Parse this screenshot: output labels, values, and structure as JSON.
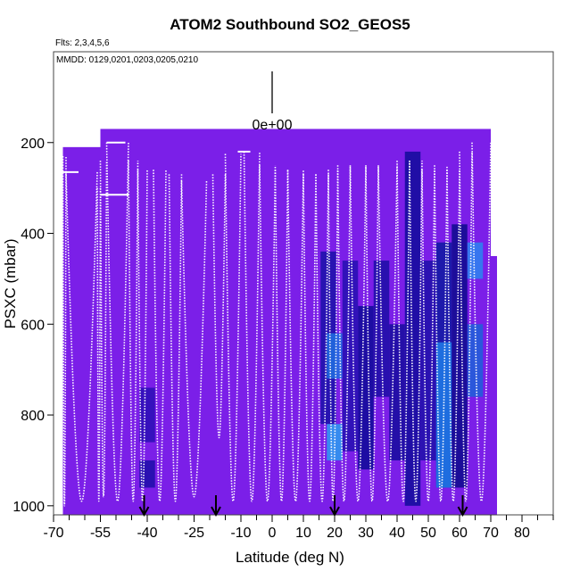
{
  "chart_data": {
    "type": "heatmap",
    "title": "ATOM2 Southbound SO2_GEOS5",
    "flights_note": "Flts: 2,3,4,5,6",
    "dates_note": "MMDD: 0129,0201,0203,0205,0210",
    "xlabel": "Latitude (deg N)",
    "ylabel": "PSXC (mbar)",
    "xlim": [
      -70,
      90
    ],
    "ylim": [
      1020,
      0
    ],
    "x_ticks": [
      -70,
      -55,
      -40,
      -25,
      -10,
      0,
      10,
      20,
      30,
      40,
      50,
      60,
      70,
      80
    ],
    "x_tick_labels": [
      "-70",
      "-55",
      "-40",
      "-25",
      "-10",
      "0",
      "10",
      "20",
      "30",
      "40",
      "50",
      "60",
      "70",
      "80"
    ],
    "y_ticks": [
      200,
      400,
      600,
      800,
      1000
    ],
    "y_tick_labels": [
      "200",
      "400",
      "600",
      "800",
      "1000"
    ],
    "colorbar_value_label": "0e+00",
    "base_color": "#7b1fe8",
    "curtain_extents": [
      {
        "x0": -67,
        "x1": -55,
        "p_top": 210,
        "p_bot": 1020
      },
      {
        "x0": -55,
        "x1": 70,
        "p_top": 170,
        "p_bot": 1020
      },
      {
        "x0": 70,
        "x1": 72,
        "p_top": 450,
        "p_bot": 1020
      }
    ],
    "anomaly_cells": [
      {
        "x": -40,
        "p0": 740,
        "p1": 860,
        "color": "#2a0fb5"
      },
      {
        "x": -40,
        "p0": 900,
        "p1": 960,
        "color": "#1c0ea8"
      },
      {
        "x": 18,
        "p0": 440,
        "p1": 820,
        "color": "#1a12a8"
      },
      {
        "x": 20,
        "p0": 620,
        "p1": 720,
        "color": "#1e6fe0"
      },
      {
        "x": 20,
        "p0": 820,
        "p1": 900,
        "color": "#2a9ff0"
      },
      {
        "x": 25,
        "p0": 460,
        "p1": 880,
        "color": "#2410b0"
      },
      {
        "x": 30,
        "p0": 560,
        "p1": 920,
        "color": "#0d0b96"
      },
      {
        "x": 35,
        "p0": 460,
        "p1": 760,
        "color": "#1b0ea5"
      },
      {
        "x": 40,
        "p0": 600,
        "p1": 900,
        "color": "#150d9c"
      },
      {
        "x": 45,
        "p0": 220,
        "p1": 1000,
        "color": "#110c9a"
      },
      {
        "x": 50,
        "p0": 460,
        "p1": 900,
        "color": "#1d11a8"
      },
      {
        "x": 55,
        "p0": 420,
        "p1": 960,
        "color": "#0d1aa0"
      },
      {
        "x": 55,
        "p0": 640,
        "p1": 960,
        "color": "#1e7ce8"
      },
      {
        "x": 60,
        "p0": 380,
        "p1": 960,
        "color": "#0c0b8c"
      },
      {
        "x": 65,
        "p0": 420,
        "p1": 500,
        "color": "#2b86f0"
      },
      {
        "x": 65,
        "p0": 600,
        "p1": 760,
        "color": "#1d62d8"
      }
    ],
    "profiles": [
      {
        "x0": -67,
        "x1": -66,
        "p_top": 230,
        "p_bot": 1000
      },
      {
        "x0": -66,
        "x1": -56,
        "p_top": 265,
        "p_bot": 990
      },
      {
        "x0": -56,
        "x1": -55,
        "p_top": 300,
        "p_bot": 990
      },
      {
        "x0": -55,
        "x1": -53,
        "p_top": 240,
        "p_bot": 980
      },
      {
        "x0": -53,
        "x1": -46,
        "p_top": 200,
        "p_bot": 990
      },
      {
        "x0": -46,
        "x1": -43,
        "p_top": 240,
        "p_bot": 990
      },
      {
        "x0": -43,
        "x1": -40,
        "p_top": 260,
        "p_bot": 990
      },
      {
        "x0": -38,
        "x1": -34,
        "p_top": 260,
        "p_bot": 990
      },
      {
        "x0": -33,
        "x1": -29,
        "p_top": 270,
        "p_bot": 990
      },
      {
        "x0": -29,
        "x1": -21,
        "p_top": 285,
        "p_bot": 980
      },
      {
        "x0": -19,
        "x1": -15,
        "p_top": 270,
        "p_bot": 850
      },
      {
        "x0": -15,
        "x1": -10,
        "p_top": 225,
        "p_bot": 990
      },
      {
        "x0": -9,
        "x1": -4,
        "p_top": 220,
        "p_bot": 990
      },
      {
        "x0": -4,
        "x1": 1,
        "p_top": 250,
        "p_bot": 990
      },
      {
        "x0": 1,
        "x1": 5,
        "p_top": 260,
        "p_bot": 990
      },
      {
        "x0": 5,
        "x1": 10,
        "p_top": 260,
        "p_bot": 990
      },
      {
        "x0": 10,
        "x1": 14,
        "p_top": 270,
        "p_bot": 990
      },
      {
        "x0": 14,
        "x1": 18,
        "p_top": 270,
        "p_bot": 990
      },
      {
        "x0": 18,
        "x1": 21,
        "p_top": 260,
        "p_bot": 990
      },
      {
        "x0": 21,
        "x1": 25,
        "p_top": 250,
        "p_bot": 990
      },
      {
        "x0": 25,
        "x1": 30,
        "p_top": 250,
        "p_bot": 990
      },
      {
        "x0": 30,
        "x1": 34,
        "p_top": 250,
        "p_bot": 990
      },
      {
        "x0": 34,
        "x1": 40,
        "p_top": 250,
        "p_bot": 990
      },
      {
        "x0": 40,
        "x1": 44,
        "p_top": 240,
        "p_bot": 990
      },
      {
        "x0": 44,
        "x1": 48,
        "p_top": 240,
        "p_bot": 990
      },
      {
        "x0": 48,
        "x1": 52,
        "p_top": 260,
        "p_bot": 990
      },
      {
        "x0": 52,
        "x1": 56,
        "p_top": 250,
        "p_bot": 990
      },
      {
        "x0": 56,
        "x1": 60,
        "p_top": 260,
        "p_bot": 990
      },
      {
        "x0": 60,
        "x1": 64,
        "p_top": 220,
        "p_bot": 990
      },
      {
        "x0": 64,
        "x1": 70,
        "p_top": 200,
        "p_bot": 990
      }
    ],
    "flat_segments": [
      {
        "x0": -67,
        "x1": -62,
        "p": 265
      },
      {
        "x0": -55,
        "x1": -46,
        "p": 315
      },
      {
        "x0": -53,
        "x1": -47,
        "p": 200
      },
      {
        "x0": -11,
        "x1": -7,
        "p": 220
      }
    ],
    "arrow_latitudes": [
      -41,
      -18,
      20,
      61
    ]
  }
}
